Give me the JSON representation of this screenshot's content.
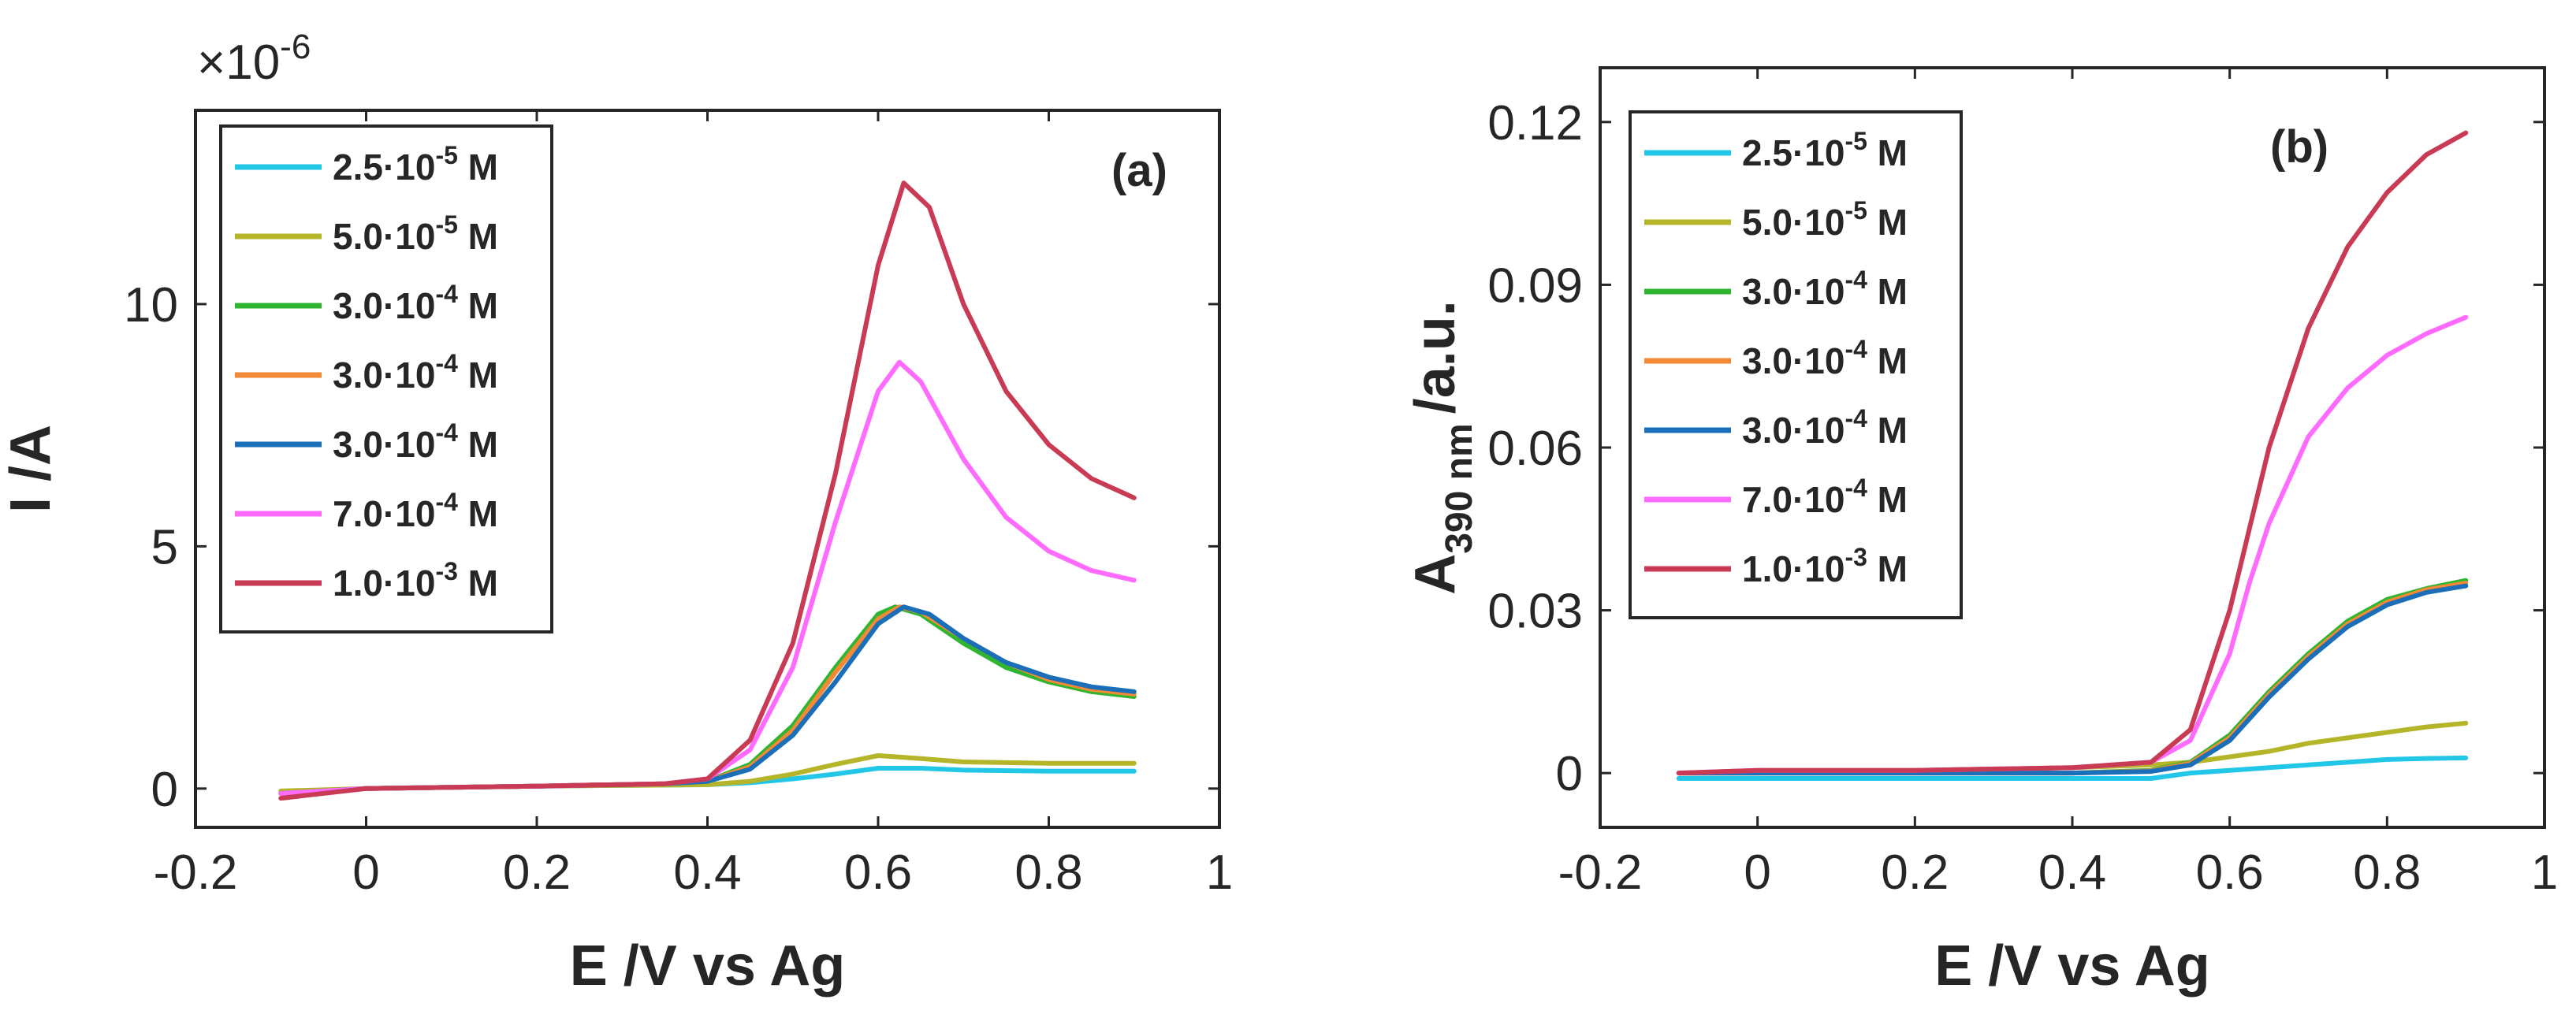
{
  "chart_data": [
    {
      "type": "line",
      "panel_label": "(a)",
      "xlabel": "E /V vs Ag",
      "ylabel": "I /A",
      "y_exponent_base": "×10",
      "y_exponent_power": "-6",
      "xlim": [
        -0.2,
        1.0
      ],
      "ylim": [
        -0.8,
        14.0
      ],
      "xticks": [
        -0.2,
        0,
        0.2,
        0.4,
        0.6,
        0.8,
        1.0
      ],
      "xtick_labels": [
        "-0.2",
        "0",
        "0.2",
        "0.4",
        "0.6",
        "0.8",
        "1"
      ],
      "yticks": [
        0,
        5,
        10
      ],
      "ytick_labels": [
        "0",
        "5",
        "10"
      ],
      "legend_position": "top-left",
      "series": [
        {
          "name": "2.5·10",
          "exp": "-5",
          "unit": " M",
          "color": "#22c7e8",
          "x": [
            -0.1,
            0.0,
            0.2,
            0.4,
            0.45,
            0.5,
            0.55,
            0.6,
            0.65,
            0.7,
            0.8,
            0.9
          ],
          "y": [
            -0.1,
            0.0,
            0.05,
            0.08,
            0.12,
            0.2,
            0.3,
            0.42,
            0.42,
            0.38,
            0.36,
            0.36
          ]
        },
        {
          "name": "5.0·10",
          "exp": "-5",
          "unit": " M",
          "color": "#b5b52a",
          "x": [
            -0.1,
            0.0,
            0.2,
            0.4,
            0.45,
            0.5,
            0.55,
            0.6,
            0.65,
            0.7,
            0.8,
            0.9
          ],
          "y": [
            -0.05,
            0.0,
            0.05,
            0.08,
            0.15,
            0.3,
            0.5,
            0.68,
            0.62,
            0.55,
            0.52,
            0.52
          ]
        },
        {
          "name": "3.0·10",
          "exp": "-4",
          "unit": " M",
          "color": "#2fb52f",
          "x": [
            -0.1,
            0.0,
            0.2,
            0.35,
            0.4,
            0.45,
            0.5,
            0.55,
            0.6,
            0.62,
            0.65,
            0.7,
            0.75,
            0.8,
            0.85,
            0.9
          ],
          "y": [
            -0.1,
            0.0,
            0.05,
            0.1,
            0.15,
            0.5,
            1.3,
            2.5,
            3.6,
            3.75,
            3.6,
            3.0,
            2.5,
            2.2,
            2.0,
            1.9
          ]
        },
        {
          "name": "3.0·10",
          "exp": "-4",
          "unit": " M",
          "color": "#f58a36",
          "x": [
            -0.1,
            0.0,
            0.2,
            0.35,
            0.4,
            0.45,
            0.5,
            0.55,
            0.6,
            0.625,
            0.65,
            0.7,
            0.75,
            0.8,
            0.85,
            0.9
          ],
          "y": [
            -0.1,
            0.0,
            0.05,
            0.1,
            0.15,
            0.45,
            1.2,
            2.4,
            3.5,
            3.75,
            3.65,
            3.1,
            2.6,
            2.25,
            2.05,
            1.95
          ]
        },
        {
          "name": "3.0·10",
          "exp": "-4",
          "unit": " M",
          "color": "#1a6fb8",
          "x": [
            -0.1,
            0.0,
            0.2,
            0.35,
            0.4,
            0.45,
            0.5,
            0.55,
            0.6,
            0.63,
            0.66,
            0.7,
            0.75,
            0.8,
            0.85,
            0.9
          ],
          "y": [
            -0.1,
            0.0,
            0.05,
            0.1,
            0.15,
            0.4,
            1.1,
            2.2,
            3.4,
            3.75,
            3.6,
            3.1,
            2.6,
            2.3,
            2.1,
            2.0
          ]
        },
        {
          "name": "7.0·10",
          "exp": "-4",
          "unit": " M",
          "color": "#ff6bff",
          "x": [
            -0.1,
            0.0,
            0.2,
            0.35,
            0.4,
            0.45,
            0.5,
            0.55,
            0.6,
            0.625,
            0.65,
            0.7,
            0.75,
            0.8,
            0.85,
            0.9
          ],
          "y": [
            -0.1,
            0.0,
            0.05,
            0.1,
            0.2,
            0.8,
            2.5,
            5.5,
            8.2,
            8.8,
            8.4,
            6.8,
            5.6,
            4.9,
            4.5,
            4.3
          ]
        },
        {
          "name": "1.0·10",
          "exp": "-3",
          "unit": " M",
          "color": "#c93a55",
          "x": [
            -0.1,
            0.0,
            0.2,
            0.35,
            0.4,
            0.45,
            0.5,
            0.55,
            0.6,
            0.63,
            0.66,
            0.7,
            0.75,
            0.8,
            0.85,
            0.9
          ],
          "y": [
            -0.2,
            0.0,
            0.05,
            0.1,
            0.2,
            1.0,
            3.0,
            6.5,
            10.8,
            12.5,
            12.0,
            10.0,
            8.2,
            7.1,
            6.4,
            6.0
          ]
        }
      ]
    },
    {
      "type": "line",
      "panel_label": "(b)",
      "xlabel": "E /V vs Ag",
      "ylabel_main": "A",
      "ylabel_sub": "390 nm",
      "ylabel_tail": "/a.u.",
      "xlim": [
        -0.2,
        1.0
      ],
      "ylim": [
        -0.01,
        0.13
      ],
      "xticks": [
        -0.2,
        0,
        0.2,
        0.4,
        0.6,
        0.8,
        1.0
      ],
      "xtick_labels": [
        "-0.2",
        "0",
        "0.2",
        "0.4",
        "0.6",
        "0.8",
        "1"
      ],
      "yticks": [
        0,
        0.03,
        0.06,
        0.09,
        0.12
      ],
      "ytick_labels": [
        "0",
        "0.03",
        "0.06",
        "0.09",
        "0.12"
      ],
      "legend_position": "top-left",
      "series": [
        {
          "name": "2.5·10",
          "exp": "-5",
          "unit": " M",
          "color": "#22c7e8",
          "x": [
            -0.1,
            0.0,
            0.2,
            0.4,
            0.5,
            0.55,
            0.6,
            0.65,
            0.7,
            0.75,
            0.8,
            0.85,
            0.9
          ],
          "y": [
            -0.001,
            -0.001,
            -0.001,
            -0.001,
            -0.001,
            0.0,
            0.0005,
            0.001,
            0.0015,
            0.002,
            0.0025,
            0.0027,
            0.0028
          ]
        },
        {
          "name": "5.0·10",
          "exp": "-5",
          "unit": " M",
          "color": "#b5b52a",
          "x": [
            -0.1,
            0.0,
            0.2,
            0.4,
            0.5,
            0.55,
            0.6,
            0.65,
            0.7,
            0.75,
            0.8,
            0.85,
            0.9
          ],
          "y": [
            0.0,
            0.0,
            0.0005,
            0.001,
            0.0015,
            0.002,
            0.003,
            0.004,
            0.0055,
            0.0065,
            0.0075,
            0.0085,
            0.0092
          ]
        },
        {
          "name": "3.0·10",
          "exp": "-4",
          "unit": " M",
          "color": "#2fb52f",
          "x": [
            -0.1,
            0.0,
            0.2,
            0.4,
            0.5,
            0.55,
            0.6,
            0.65,
            0.7,
            0.75,
            0.8,
            0.85,
            0.9
          ],
          "y": [
            0.0,
            0.0,
            0.0,
            0.0,
            0.0005,
            0.002,
            0.007,
            0.015,
            0.022,
            0.028,
            0.032,
            0.034,
            0.0355
          ]
        },
        {
          "name": "3.0·10",
          "exp": "-4",
          "unit": " M",
          "color": "#f58a36",
          "x": [
            -0.1,
            0.0,
            0.2,
            0.4,
            0.5,
            0.55,
            0.6,
            0.65,
            0.7,
            0.75,
            0.8,
            0.85,
            0.9
          ],
          "y": [
            0.0,
            0.0,
            0.0,
            0.0,
            0.0004,
            0.0018,
            0.0065,
            0.0145,
            0.0215,
            0.0275,
            0.0315,
            0.0338,
            0.035
          ]
        },
        {
          "name": "3.0·10",
          "exp": "-4",
          "unit": " M",
          "color": "#1a6fb8",
          "x": [
            -0.1,
            0.0,
            0.2,
            0.4,
            0.5,
            0.55,
            0.6,
            0.65,
            0.7,
            0.75,
            0.8,
            0.85,
            0.9
          ],
          "y": [
            0.0,
            0.0,
            0.0,
            0.0,
            0.0003,
            0.0015,
            0.006,
            0.014,
            0.021,
            0.027,
            0.031,
            0.0333,
            0.0345
          ]
        },
        {
          "name": "7.0·10",
          "exp": "-4",
          "unit": " M",
          "color": "#ff6bff",
          "x": [
            -0.1,
            0.0,
            0.2,
            0.4,
            0.5,
            0.55,
            0.6,
            0.625,
            0.65,
            0.7,
            0.75,
            0.8,
            0.85,
            0.9
          ],
          "y": [
            0.0,
            0.0005,
            0.0005,
            0.001,
            0.002,
            0.006,
            0.022,
            0.035,
            0.046,
            0.062,
            0.071,
            0.077,
            0.081,
            0.084
          ]
        },
        {
          "name": "1.0·10",
          "exp": "-3",
          "unit": " M",
          "color": "#c93a55",
          "x": [
            -0.1,
            0.0,
            0.2,
            0.4,
            0.5,
            0.55,
            0.6,
            0.625,
            0.65,
            0.7,
            0.75,
            0.8,
            0.85,
            0.9
          ],
          "y": [
            0.0,
            0.0005,
            0.0005,
            0.001,
            0.002,
            0.008,
            0.03,
            0.045,
            0.06,
            0.082,
            0.097,
            0.107,
            0.114,
            0.118
          ]
        }
      ]
    }
  ]
}
